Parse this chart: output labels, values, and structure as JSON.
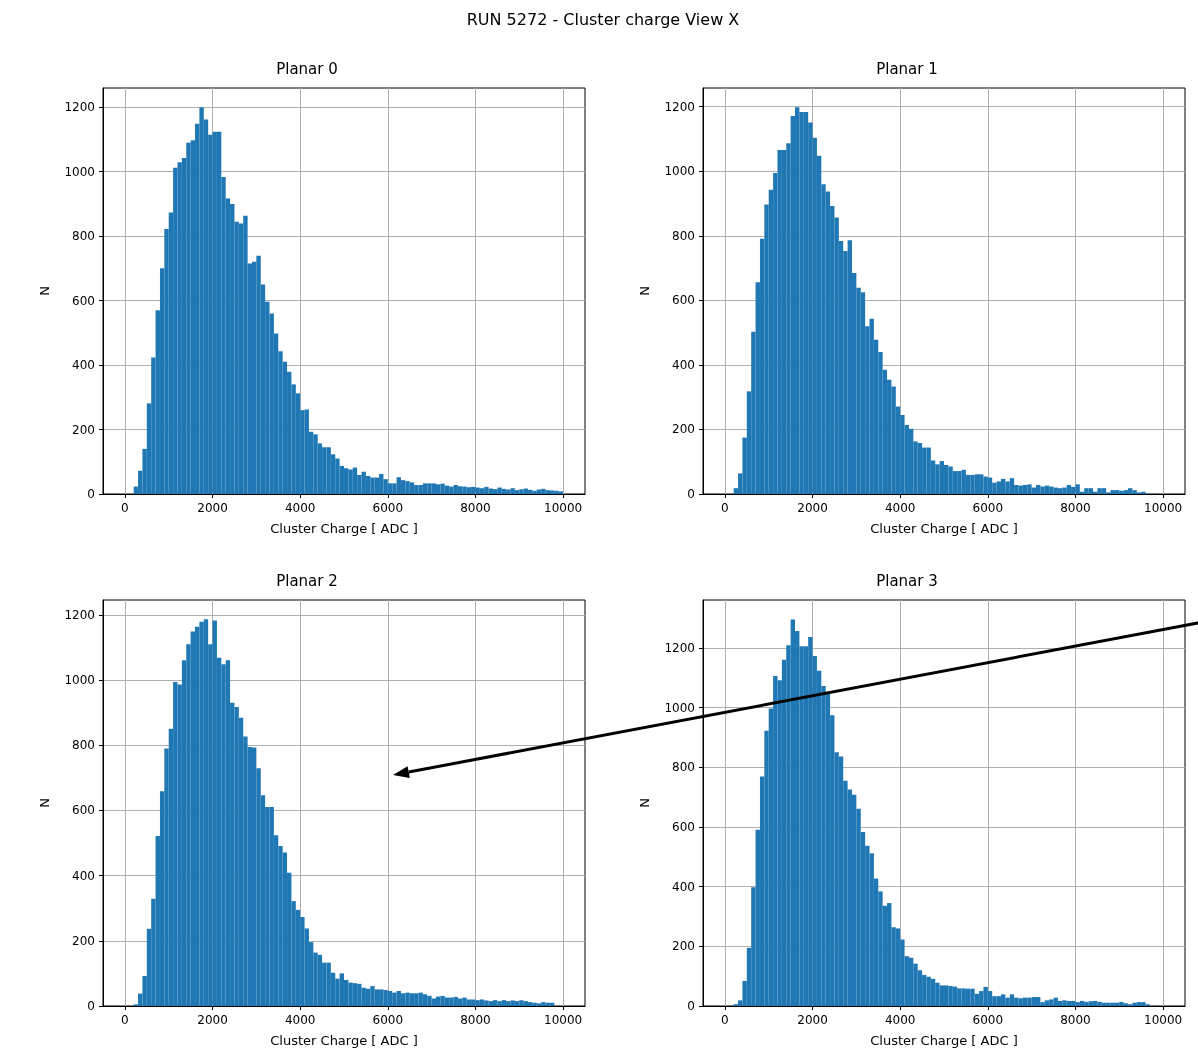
{
  "chart_data": [
    {
      "type": "histogram",
      "title": "Planar 0",
      "xlabel": "Cluster Charge [ ADC ]",
      "ylabel": "N",
      "color": "#1f77b4",
      "annotations": [
        "RUN 5272 - Cluster charge View X"
      ],
      "bins": [
        0,
        100,
        200,
        300,
        400,
        500,
        600,
        700,
        800,
        900,
        1000,
        1100,
        1200,
        1300,
        1400,
        1500,
        1600,
        1700,
        1800,
        1900,
        2000,
        2100,
        2200,
        2300,
        2400,
        2500,
        2600,
        2700,
        2800,
        2900,
        3000,
        3100,
        3200,
        3300,
        3400,
        3500,
        3600,
        3700,
        3800,
        3900,
        4000,
        4100,
        4200,
        4300,
        4400,
        4500,
        4600,
        4700,
        4800,
        4900,
        5000,
        5100,
        5200,
        5300,
        5400,
        5500,
        5600,
        5700,
        5800,
        5900,
        6000,
        6100,
        6200,
        6300,
        6400,
        6500,
        6600,
        6700,
        6800,
        6900,
        7000,
        7100,
        7200,
        7300,
        7400,
        7500,
        7600,
        7700,
        7800,
        7900,
        8000,
        8100,
        8200,
        8300,
        8400,
        8500,
        8600,
        8700,
        8800,
        8900,
        9000,
        9100,
        9200,
        9300,
        9400,
        9500,
        9600,
        9700,
        9800,
        9900,
        10000
      ],
      "values": [
        0,
        0,
        23,
        72,
        140,
        281,
        423,
        570,
        700,
        822,
        873,
        1012,
        1029,
        1042,
        1089,
        1097,
        1148,
        1199,
        1161,
        1114,
        1123,
        1123,
        983,
        916,
        899,
        844,
        839,
        863,
        715,
        720,
        739,
        650,
        596,
        560,
        498,
        443,
        410,
        379,
        340,
        312,
        260,
        262,
        193,
        185,
        157,
        145,
        145,
        123,
        110,
        87,
        80,
        76,
        82,
        59,
        69,
        56,
        51,
        51,
        62,
        46,
        33,
        33,
        52,
        43,
        40,
        36,
        28,
        28,
        33,
        33,
        33,
        30,
        32,
        26,
        23,
        28,
        24,
        23,
        21,
        22,
        20,
        18,
        22,
        17,
        15,
        20,
        16,
        14,
        18,
        12,
        15,
        17,
        13,
        10,
        14,
        16,
        12,
        11,
        10,
        8
      ],
      "xlim": [
        -500,
        10500
      ],
      "ylim": [
        0,
        1259
      ],
      "xticks": [
        0,
        2000,
        4000,
        6000,
        8000,
        10000
      ],
      "yticks": [
        0,
        200,
        400,
        600,
        800,
        1000,
        1200
      ],
      "grid": true
    },
    {
      "type": "histogram",
      "title": "Planar 1",
      "xlabel": "Cluster Charge [ ADC ]",
      "ylabel": "N",
      "color": "#1f77b4",
      "bins": [
        0,
        100,
        200,
        300,
        400,
        500,
        600,
        700,
        800,
        900,
        1000,
        1100,
        1200,
        1300,
        1400,
        1500,
        1600,
        1700,
        1800,
        1900,
        2000,
        2100,
        2200,
        2300,
        2400,
        2500,
        2600,
        2700,
        2800,
        2900,
        3000,
        3100,
        3200,
        3300,
        3400,
        3500,
        3600,
        3700,
        3800,
        3900,
        4000,
        4100,
        4200,
        4300,
        4400,
        4500,
        4600,
        4700,
        4800,
        4900,
        5000,
        5100,
        5200,
        5300,
        5400,
        5500,
        5600,
        5700,
        5800,
        5900,
        6000,
        6100,
        6200,
        6300,
        6400,
        6500,
        6600,
        6700,
        6800,
        6900,
        7000,
        7100,
        7200,
        7300,
        7400,
        7500,
        7600,
        7700,
        7800,
        7900,
        8000,
        8100,
        8200,
        8300,
        8400,
        8500,
        8600,
        8700,
        8800,
        8900,
        9000,
        9100,
        9200,
        9300,
        9400,
        9500,
        9600,
        9700,
        9800,
        9900,
        10000
      ],
      "values": [
        0,
        0,
        18,
        64,
        175,
        318,
        503,
        656,
        791,
        897,
        943,
        995,
        1066,
        1066,
        1087,
        1171,
        1198,
        1184,
        1184,
        1151,
        1104,
        1048,
        960,
        937,
        892,
        857,
        784,
        753,
        786,
        685,
        639,
        625,
        520,
        543,
        478,
        440,
        385,
        354,
        333,
        271,
        245,
        214,
        202,
        163,
        158,
        144,
        144,
        104,
        92,
        102,
        90,
        85,
        71,
        71,
        75,
        59,
        59,
        61,
        61,
        54,
        51,
        35,
        39,
        47,
        39,
        49,
        28,
        26,
        28,
        30,
        20,
        28,
        23,
        26,
        23,
        20,
        18,
        20,
        28,
        22,
        30,
        7,
        18,
        18,
        7,
        18,
        18,
        5,
        12,
        12,
        10,
        12,
        18,
        12,
        5,
        7,
        2,
        0,
        0,
        0
      ],
      "xlim": [
        -500,
        10500
      ],
      "ylim": [
        0,
        1258
      ],
      "xticks": [
        0,
        2000,
        4000,
        6000,
        8000,
        10000
      ],
      "yticks": [
        0,
        200,
        400,
        600,
        800,
        1000,
        1200
      ],
      "grid": true
    },
    {
      "type": "histogram",
      "title": "Planar 2",
      "xlabel": "Cluster Charge [ ADC ]",
      "ylabel": "N",
      "color": "#1f77b4",
      "bins": [
        0,
        100,
        200,
        300,
        400,
        500,
        600,
        700,
        800,
        900,
        1000,
        1100,
        1200,
        1300,
        1400,
        1500,
        1600,
        1700,
        1800,
        1900,
        2000,
        2100,
        2200,
        2300,
        2400,
        2500,
        2600,
        2700,
        2800,
        2900,
        3000,
        3100,
        3200,
        3300,
        3400,
        3500,
        3600,
        3700,
        3800,
        3900,
        4000,
        4100,
        4200,
        4300,
        4400,
        4500,
        4600,
        4700,
        4800,
        4900,
        5000,
        5100,
        5200,
        5300,
        5400,
        5500,
        5600,
        5700,
        5800,
        5900,
        6000,
        6100,
        6200,
        6300,
        6400,
        6500,
        6600,
        6700,
        6800,
        6900,
        7000,
        7100,
        7200,
        7300,
        7400,
        7500,
        7600,
        7700,
        7800,
        7900,
        8000,
        8100,
        8200,
        8300,
        8400,
        8500,
        8600,
        8700,
        8800,
        8900,
        9000,
        9100,
        9200,
        9300,
        9400,
        9500,
        9600,
        9700,
        9800,
        9900,
        10000
      ],
      "values": [
        0,
        0,
        5,
        38,
        92,
        237,
        329,
        522,
        659,
        790,
        851,
        994,
        987,
        1061,
        1110,
        1149,
        1164,
        1179,
        1187,
        1110,
        1183,
        1069,
        1049,
        1061,
        931,
        918,
        885,
        827,
        795,
        793,
        730,
        647,
        611,
        611,
        524,
        491,
        471,
        409,
        322,
        295,
        273,
        238,
        196,
        164,
        157,
        133,
        133,
        102,
        84,
        100,
        80,
        72,
        70,
        68,
        56,
        53,
        61,
        51,
        51,
        49,
        46,
        41,
        46,
        39,
        41,
        39,
        39,
        41,
        36,
        31,
        23,
        29,
        31,
        26,
        26,
        28,
        23,
        26,
        20,
        20,
        18,
        20,
        17,
        15,
        18,
        15,
        18,
        15,
        17,
        15,
        18,
        15,
        12,
        10,
        8,
        12,
        10,
        10,
        0,
        0
      ],
      "xlim": [
        -500,
        10500
      ],
      "ylim": [
        0,
        1246
      ],
      "xticks": [
        0,
        2000,
        4000,
        6000,
        8000,
        10000
      ],
      "yticks": [
        0,
        200,
        400,
        600,
        800,
        1000,
        1200
      ],
      "grid": true
    },
    {
      "type": "histogram",
      "title": "Planar 3",
      "xlabel": "Cluster Charge [ ADC ]",
      "ylabel": "N",
      "color": "#1f77b4",
      "bins": [
        0,
        100,
        200,
        300,
        400,
        500,
        600,
        700,
        800,
        900,
        1000,
        1100,
        1200,
        1300,
        1400,
        1500,
        1600,
        1700,
        1800,
        1900,
        2000,
        2100,
        2200,
        2300,
        2400,
        2500,
        2600,
        2700,
        2800,
        2900,
        3000,
        3100,
        3200,
        3300,
        3400,
        3500,
        3600,
        3700,
        3800,
        3900,
        4000,
        4100,
        4200,
        4300,
        4400,
        4500,
        4600,
        4700,
        4800,
        4900,
        5000,
        5100,
        5200,
        5300,
        5400,
        5500,
        5600,
        5700,
        5800,
        5900,
        6000,
        6100,
        6200,
        6300,
        6400,
        6500,
        6600,
        6700,
        6800,
        6900,
        7000,
        7100,
        7200,
        7300,
        7400,
        7500,
        7600,
        7700,
        7800,
        7900,
        8000,
        8100,
        8200,
        8300,
        8400,
        8500,
        8600,
        8700,
        8800,
        8900,
        9000,
        9100,
        9200,
        9300,
        9400,
        9500,
        9600,
        9700,
        9800,
        9900,
        10000
      ],
      "values": [
        0,
        0,
        6,
        19,
        84,
        195,
        398,
        591,
        769,
        923,
        997,
        1106,
        1092,
        1161,
        1209,
        1296,
        1257,
        1206,
        1206,
        1237,
        1173,
        1124,
        1073,
        1051,
        975,
        851,
        836,
        755,
        726,
        708,
        661,
        583,
        537,
        512,
        427,
        384,
        336,
        345,
        264,
        260,
        223,
        167,
        162,
        142,
        120,
        104,
        98,
        91,
        78,
        69,
        69,
        67,
        65,
        59,
        59,
        58,
        58,
        41,
        50,
        64,
        50,
        33,
        33,
        39,
        28,
        39,
        28,
        26,
        28,
        28,
        30,
        30,
        13,
        19,
        22,
        28,
        17,
        19,
        17,
        17,
        13,
        17,
        14,
        16,
        17,
        14,
        11,
        11,
        11,
        11,
        13,
        9,
        6,
        11,
        13,
        13,
        6,
        0,
        0,
        0
      ],
      "xlim": [
        -500,
        10500
      ],
      "ylim": [
        0,
        1361
      ],
      "xticks": [
        0,
        2000,
        4000,
        6000,
        8000,
        10000
      ],
      "yticks": [
        0,
        200,
        400,
        600,
        800,
        1000,
        1200
      ],
      "grid": true
    }
  ]
}
